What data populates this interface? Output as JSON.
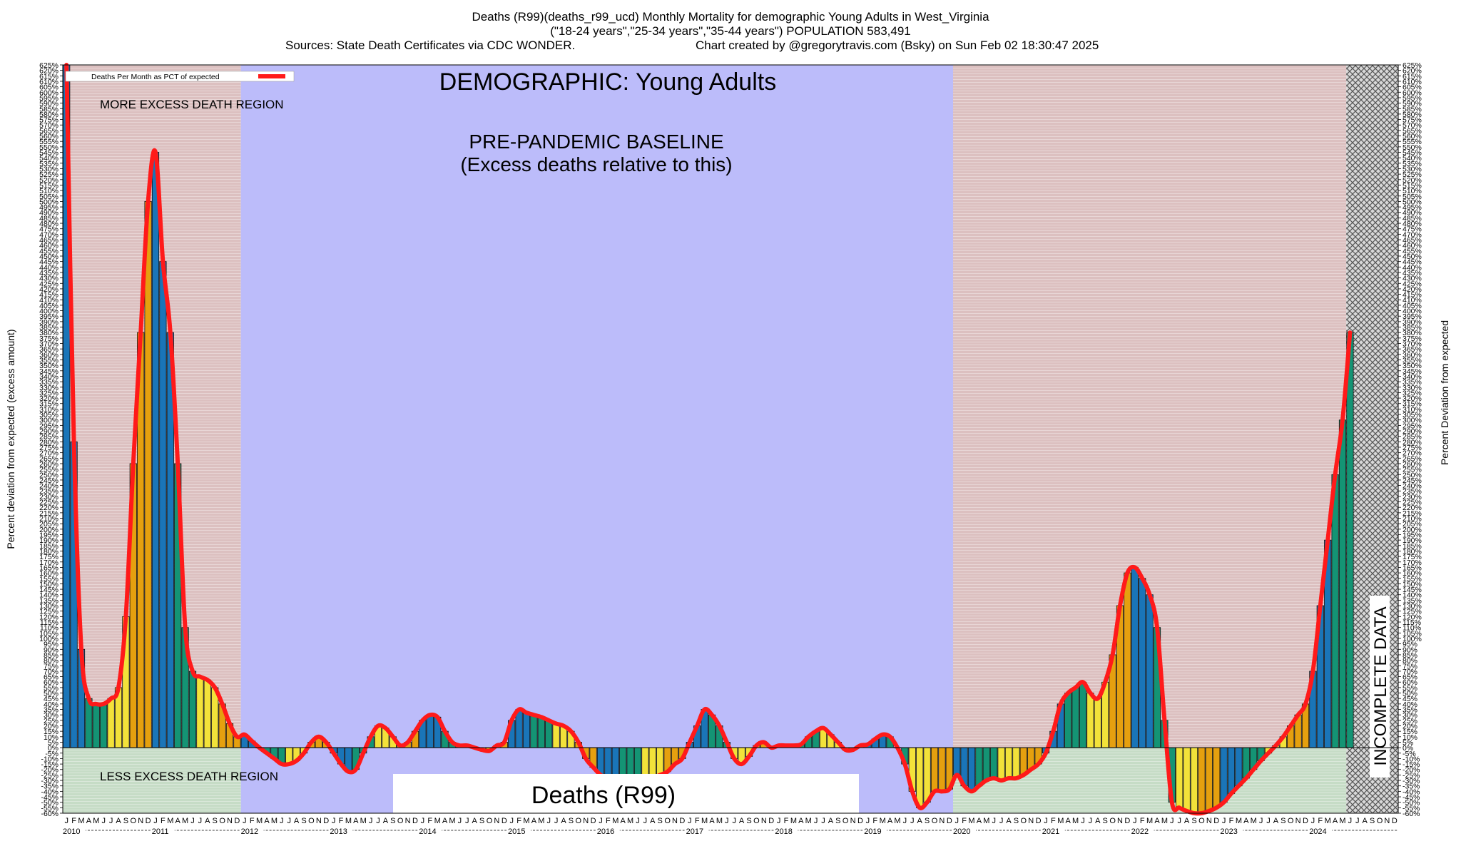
{
  "header": {
    "line1": "Deaths (R99)(deaths_r99_ucd) Monthly Mortality for demographic Young Adults in West_Virginia",
    "line2": "(\"18-24 years\",\"25-34 years\",\"35-44 years\") POPULATION 583,491",
    "sources": "Sources: State Death Certificates via CDC WONDER.",
    "credit": "Chart created by @gregorytravis.com (Bsky) on Sun Feb 02 18:30:47 2025"
  },
  "colors": {
    "excess_region": "#dcc0c0",
    "baseline_region": "#bcbcfa",
    "less_region": "#c6dcc6",
    "line": "#ff1a1a",
    "bar_blue": "#1a75b8",
    "bar_green": "#149474",
    "bar_yellow": "#f2e23a",
    "bar_orange": "#e5a00f",
    "incomplete": "#777777"
  },
  "chart_data": {
    "type": "bar",
    "title": "DEMOGRAPHIC: Young Adults",
    "overlay_title": "Deaths (R99)",
    "ylabel_left": "Percent deviation from expected (excess amount)",
    "ylabel_right": "Percent Deviation from expected",
    "legend": {
      "label": "Deaths Per Month as PCT of expected",
      "placement": "top-left"
    },
    "ylim": [
      -60,
      625
    ],
    "ytick_step": 5,
    "start_year": 2010,
    "years": [
      "2010",
      "2011",
      "2012",
      "2013",
      "2014",
      "2015",
      "2016",
      "2017",
      "2018",
      "2019",
      "2020",
      "2021",
      "2022",
      "2023",
      "2024"
    ],
    "month_letters": [
      "J",
      "F",
      "M",
      "A",
      "M",
      "J",
      "J",
      "A",
      "S",
      "O",
      "N",
      "D"
    ],
    "month_color_order": [
      "blue",
      "blue",
      "blue",
      "green",
      "green",
      "green",
      "yellow",
      "yellow",
      "yellow",
      "orange",
      "orange",
      "orange"
    ],
    "regions": [
      {
        "label": "MORE EXCESS DEATH REGION",
        "fill": "excess",
        "from": "2010-01",
        "to": "2011-12"
      },
      {
        "label": "PRE-PANDEMIC BASELINE",
        "sublabel": "(Excess deaths relative to this)",
        "fill": "baseline",
        "from": "2012-01",
        "to": "2019-12"
      },
      {
        "label": "LESS EXCESS DEATH REGION",
        "fill": "less",
        "from": "2010-01",
        "to": "2011-12"
      },
      {
        "label": "",
        "fill": "excess",
        "from": "2020-01",
        "to": "2024-05"
      },
      {
        "label": "INCOMPLETE DATA",
        "fill": "incomplete",
        "from": "2024-06",
        "to": "2024-12"
      }
    ],
    "values": [
      625,
      280,
      90,
      45,
      40,
      40,
      45,
      55,
      120,
      260,
      380,
      500,
      545,
      445,
      380,
      260,
      110,
      70,
      65,
      62,
      55,
      40,
      22,
      10,
      12,
      6,
      0,
      -5,
      -10,
      -15,
      -15,
      -12,
      -5,
      5,
      10,
      5,
      -5,
      -15,
      -22,
      -20,
      -5,
      10,
      20,
      18,
      10,
      2,
      5,
      15,
      25,
      30,
      28,
      15,
      5,
      2,
      2,
      0,
      -2,
      -3,
      2,
      5,
      25,
      35,
      32,
      30,
      28,
      25,
      22,
      20,
      15,
      5,
      -10,
      -18,
      -25,
      -28,
      -28,
      -28,
      -28,
      -28,
      -28,
      -28,
      -25,
      -22,
      -15,
      -10,
      5,
      20,
      35,
      30,
      20,
      5,
      -10,
      -15,
      -8,
      2,
      5,
      0,
      2,
      2,
      2,
      3,
      10,
      15,
      18,
      12,
      5,
      -2,
      -2,
      2,
      3,
      8,
      12,
      10,
      0,
      -15,
      -40,
      -55,
      -50,
      -40,
      -40,
      -38,
      -25,
      -35,
      -40,
      -35,
      -30,
      -28,
      -30,
      -28,
      -28,
      -25,
      -20,
      -15,
      -5,
      15,
      40,
      50,
      55,
      60,
      50,
      45,
      60,
      85,
      130,
      160,
      165,
      155,
      140,
      110,
      25,
      -50,
      -55,
      -58,
      -60,
      -60,
      -58,
      -55,
      -50,
      -42,
      -35,
      -28,
      -20,
      -12,
      -5,
      2,
      10,
      20,
      30,
      40,
      70,
      130,
      190,
      250,
      300,
      380
    ]
  }
}
